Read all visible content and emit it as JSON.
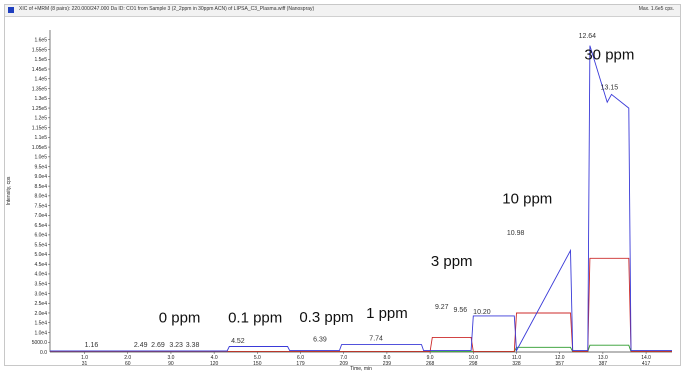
{
  "window": {
    "title": "XIC of +MRM (8 pairs): 220.000/247.000 Da ID: CO1 from Sample 3 (2_2ppm in 30ppm ACN) of LIPSA_C3_Plasma.wiff (Nanospray)",
    "max_label": "Max. 1.6e5 cps."
  },
  "chart_data": {
    "type": "line",
    "ylabel": "Intensity, cps",
    "xlabel": "Time, min",
    "ylim": [
      0,
      165000
    ],
    "xlim": [
      0.2,
      14.6
    ],
    "y_ticks": [
      "5000.0",
      "1.0e4",
      "1.5e4",
      "2.0e4",
      "2.5e4",
      "3.0e4",
      "3.5e4",
      "4.0e4",
      "4.5e4",
      "5.0e4",
      "5.5e4",
      "6.0e4",
      "6.5e4",
      "7.0e4",
      "7.5e4",
      "8.0e4",
      "8.5e4",
      "9.0e4",
      "9.5e4",
      "1.0e5",
      "1.05e5",
      "1.1e5",
      "1.15e5",
      "1.2e5",
      "1.25e5",
      "1.3e5",
      "1.35e5",
      "1.4e5",
      "1.45e5",
      "1.5e5",
      "1.55e5",
      "1.6e5"
    ],
    "x_ticks": [
      {
        "t": 1.0,
        "label": "1.0",
        "scan": "31"
      },
      {
        "t": 2.0,
        "label": "2.0",
        "scan": "60"
      },
      {
        "t": 3.0,
        "label": "3.0",
        "scan": "90"
      },
      {
        "t": 4.0,
        "label": "4.0",
        "scan": "120"
      },
      {
        "t": 5.0,
        "label": "5.0",
        "scan": "150"
      },
      {
        "t": 6.0,
        "label": "6.0",
        "scan": "179"
      },
      {
        "t": 7.0,
        "label": "7.0",
        "scan": "209"
      },
      {
        "t": 8.0,
        "label": "8.0",
        "scan": "239"
      },
      {
        "t": 9.0,
        "label": "9.0",
        "scan": "268"
      },
      {
        "t": 10.0,
        "label": "10.0",
        "scan": "298"
      },
      {
        "t": 11.0,
        "label": "11.0",
        "scan": "328"
      },
      {
        "t": 12.0,
        "label": "12.0",
        "scan": "357"
      },
      {
        "t": 13.0,
        "label": "13.0",
        "scan": "387"
      },
      {
        "t": 14.0,
        "label": "14.0",
        "scan": "417"
      }
    ],
    "series": [
      {
        "color": "#3a3ad8",
        "x": [
          0.2,
          4.3,
          4.35,
          5.7,
          5.75,
          6.9,
          6.95,
          8.8,
          8.85,
          9.95,
          10.0,
          10.95,
          11.0,
          12.25,
          12.3,
          12.65,
          12.7,
          13.1,
          13.2,
          13.6,
          13.65,
          14.6
        ],
        "y": [
          500,
          500,
          2800,
          2800,
          700,
          700,
          3800,
          3800,
          700,
          700,
          18500,
          18500,
          700,
          52000,
          700,
          700,
          157000,
          128000,
          132000,
          125000,
          700,
          700
        ]
      },
      {
        "color": "#cc2a2a",
        "x": [
          0.2,
          9.0,
          9.05,
          9.95,
          10.0,
          10.95,
          11.0,
          12.25,
          12.3,
          12.65,
          12.7,
          13.6,
          13.65,
          14.6
        ],
        "y": [
          300,
          300,
          7500,
          7500,
          300,
          300,
          20000,
          20000,
          300,
          300,
          48000,
          48000,
          300,
          300
        ]
      },
      {
        "color": "#2a9a2a",
        "x": [
          0.2,
          10.95,
          11.0,
          12.25,
          12.3,
          12.65,
          12.7,
          13.6,
          13.65,
          14.6
        ],
        "y": [
          200,
          200,
          2400,
          2400,
          200,
          200,
          3500,
          3500,
          200,
          200
        ]
      }
    ],
    "peak_labels": [
      {
        "text": "1.16",
        "x": 1.16,
        "y": 2500
      },
      {
        "text": "2.49",
        "x": 2.3,
        "y": 2500
      },
      {
        "text": "2.69",
        "x": 2.7,
        "y": 2500
      },
      {
        "text": "3.23",
        "x": 3.12,
        "y": 2500
      },
      {
        "text": "3.38",
        "x": 3.5,
        "y": 2500
      },
      {
        "text": "4.52",
        "x": 4.55,
        "y": 4500
      },
      {
        "text": "6.39",
        "x": 6.45,
        "y": 5500
      },
      {
        "text": "7.74",
        "x": 7.75,
        "y": 6000
      },
      {
        "text": "9.27",
        "x": 9.27,
        "y": 22000
      },
      {
        "text": "9.56",
        "x": 9.7,
        "y": 20500
      },
      {
        "text": "10.20",
        "x": 10.2,
        "y": 19500
      },
      {
        "text": "10.98",
        "x": 10.98,
        "y": 60000
      },
      {
        "text": "12.64",
        "x": 12.64,
        "y": 161000
      },
      {
        "text": "13.15",
        "x": 13.15,
        "y": 134500
      }
    ],
    "annotations": [
      {
        "text": "0 ppm",
        "x": 3.2,
        "y": 15000
      },
      {
        "text": "0.1 ppm",
        "x": 4.95,
        "y": 15000
      },
      {
        "text": "0.3 ppm",
        "x": 6.6,
        "y": 15500
      },
      {
        "text": "1 ppm",
        "x": 8.0,
        "y": 17500
      },
      {
        "text": "3 ppm",
        "x": 9.5,
        "y": 44000
      },
      {
        "text": "10 ppm",
        "x": 11.25,
        "y": 76000
      },
      {
        "text": "30 ppm",
        "x": 13.15,
        "y": 150000
      }
    ]
  }
}
